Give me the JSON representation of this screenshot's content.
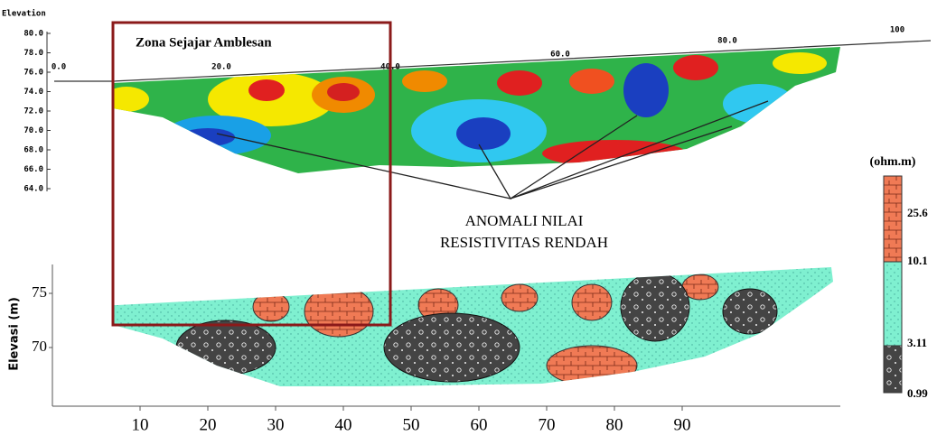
{
  "top_section": {
    "axis_label": "Elevation",
    "yticks": [
      "80.0",
      "78.0",
      "76.0",
      "74.0",
      "72.0",
      "70.0",
      "68.0",
      "66.0",
      "64.0"
    ],
    "xticks": [
      "0.0",
      "20.0",
      "40.0",
      "60.0",
      "80.0",
      "100"
    ],
    "zone_label": "Zona Sejajar Amblesan",
    "annotation": [
      "ANOMALI NILAI",
      "RESISTIVITAS RENDAH"
    ]
  },
  "bottom_section": {
    "axis_label": "Elevasi (m)",
    "yticks": [
      "75",
      "70"
    ],
    "xticks": [
      "10",
      "20",
      "30",
      "40",
      "50",
      "60",
      "70",
      "80",
      "90"
    ]
  },
  "legend": {
    "unit": "(ohm.m)",
    "values": [
      "25.6",
      "10.1",
      "3.11",
      "0.99"
    ]
  }
}
